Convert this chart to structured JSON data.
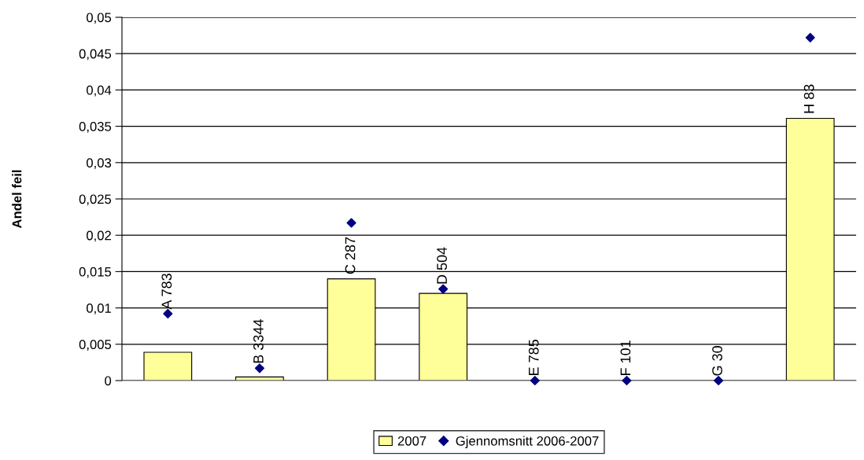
{
  "chart_data": {
    "type": "bar",
    "ylabel": "Andel feil",
    "categories": [
      "A 783",
      "B 3344",
      "C 287",
      "D 504",
      "E 785",
      "F 101",
      "G 30",
      "H 83"
    ],
    "series": [
      {
        "name": "2007",
        "color": "#ffff99",
        "values": [
          0.0039,
          0.0005,
          0.014,
          0.012,
          0,
          0,
          0,
          0.0361
        ]
      },
      {
        "name": "Gjennomsnitt 2006-2007",
        "type": "scatter",
        "color": "#000080",
        "values": [
          0.0092,
          0.0017,
          0.0217,
          0.0126,
          0,
          0,
          0,
          0.0472
        ]
      }
    ],
    "ylim": [
      0,
      0.05
    ],
    "yticks": [
      {
        "value": 0,
        "label": "0"
      },
      {
        "value": 0.005,
        "label": "0,005"
      },
      {
        "value": 0.01,
        "label": "0,01"
      },
      {
        "value": 0.015,
        "label": "0,015"
      },
      {
        "value": 0.02,
        "label": "0,02"
      },
      {
        "value": 0.025,
        "label": "0,025"
      },
      {
        "value": 0.03,
        "label": "0,03"
      },
      {
        "value": 0.035,
        "label": "0,035"
      },
      {
        "value": 0.04,
        "label": "0,04"
      },
      {
        "value": 0.045,
        "label": "0,045"
      },
      {
        "value": 0.05,
        "label": "0,05"
      }
    ],
    "grid": "y",
    "legend": "bottom",
    "marker": "diamond",
    "tick_labels": "y"
  }
}
